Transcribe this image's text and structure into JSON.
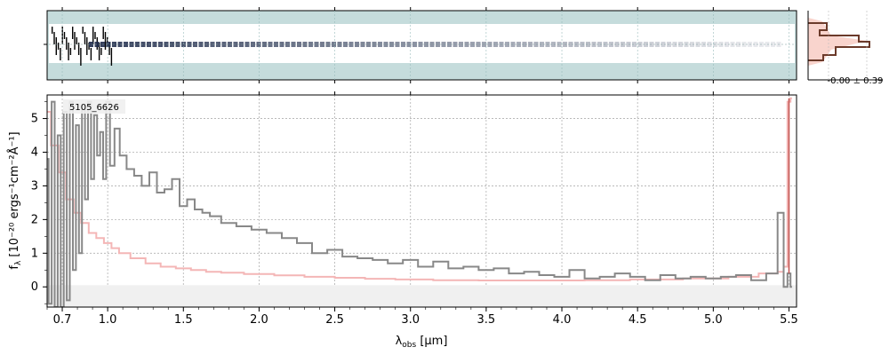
{
  "chart_data": {
    "type": "line",
    "object_id": "5105_6626",
    "xlabel_prefix": "λ",
    "xlabel_sub": "obs",
    "xlabel_unit": "[μm]",
    "ylabel_text": "f",
    "ylabel_sub": "λ",
    "ylabel_unit": "[10⁻²⁰ ergs⁻¹cm⁻²Å⁻¹]",
    "xlim": [
      0.6,
      5.55
    ],
    "ylim": [
      -0.6,
      5.7
    ],
    "x_ticks": [
      "0.7",
      "1.0",
      "1.5",
      "2.0",
      "2.5",
      "3.0",
      "3.5",
      "4.0",
      "4.5",
      "5.0",
      "5.5"
    ],
    "y_ticks": [
      "0",
      "1",
      "2",
      "3",
      "4",
      "5"
    ],
    "grid": true,
    "hist_label": "-0.00 ± 0.39",
    "colors": {
      "data": "#888888",
      "model": "#f4b6b6",
      "model_edge": "#c0504d",
      "spec2d_bg": "#c5dcdc",
      "hist_line": "#6b3a2a",
      "hist_fill": "#f8c9c0",
      "zero_band": "#f0f0f0"
    },
    "series": [
      {
        "role": "data",
        "x": [
          0.6,
          0.62,
          0.64,
          0.66,
          0.68,
          0.7,
          0.72,
          0.74,
          0.76,
          0.78,
          0.8,
          0.82,
          0.84,
          0.86,
          0.88,
          0.9,
          0.92,
          0.94,
          0.96,
          0.98,
          1.0,
          1.03,
          1.06,
          1.1,
          1.15,
          1.2,
          1.25,
          1.3,
          1.35,
          1.4,
          1.45,
          1.5,
          1.55,
          1.6,
          1.65,
          1.7,
          1.8,
          1.9,
          2.0,
          2.1,
          2.2,
          2.3,
          2.4,
          2.5,
          2.6,
          2.7,
          2.8,
          2.9,
          3.0,
          3.1,
          3.2,
          3.3,
          3.4,
          3.5,
          3.6,
          3.7,
          3.8,
          3.9,
          4.0,
          4.1,
          4.2,
          4.3,
          4.4,
          4.5,
          4.6,
          4.7,
          4.8,
          4.9,
          5.0,
          5.1,
          5.2,
          5.3,
          5.4,
          5.45,
          5.48,
          5.5,
          5.52
        ],
        "y": [
          3.8,
          -0.5,
          5.5,
          -0.6,
          4.5,
          -0.6,
          5.2,
          -0.4,
          5.5,
          0.5,
          4.8,
          1.0,
          5.4,
          2.6,
          5.5,
          3.2,
          5.1,
          3.9,
          4.6,
          3.2,
          5.5,
          3.6,
          4.7,
          3.9,
          3.5,
          3.3,
          3.0,
          3.4,
          2.8,
          2.9,
          3.2,
          2.4,
          2.6,
          2.3,
          2.2,
          2.1,
          1.9,
          1.8,
          1.7,
          1.6,
          1.45,
          1.3,
          1.0,
          1.1,
          0.9,
          0.85,
          0.8,
          0.7,
          0.8,
          0.6,
          0.75,
          0.55,
          0.6,
          0.5,
          0.55,
          0.4,
          0.45,
          0.35,
          0.3,
          0.5,
          0.25,
          0.3,
          0.4,
          0.3,
          0.2,
          0.35,
          0.25,
          0.3,
          0.25,
          0.3,
          0.35,
          0.2,
          0.4,
          2.2,
          0.0,
          0.4,
          0.0
        ]
      },
      {
        "role": "model",
        "x": [
          0.6,
          0.65,
          0.7,
          0.75,
          0.8,
          0.85,
          0.9,
          0.95,
          1.0,
          1.05,
          1.1,
          1.2,
          1.3,
          1.4,
          1.5,
          1.6,
          1.7,
          1.8,
          2.0,
          2.2,
          2.4,
          2.6,
          2.8,
          3.0,
          3.3,
          3.6,
          4.0,
          4.3,
          4.6,
          5.0,
          5.2,
          5.4,
          5.45,
          5.48,
          5.5,
          5.52
        ],
        "y": [
          5.2,
          4.2,
          3.4,
          2.6,
          2.2,
          1.9,
          1.6,
          1.45,
          1.3,
          1.15,
          1.0,
          0.85,
          0.7,
          0.6,
          0.55,
          0.5,
          0.45,
          0.42,
          0.38,
          0.34,
          0.3,
          0.27,
          0.24,
          0.22,
          0.2,
          0.19,
          0.19,
          0.2,
          0.22,
          0.25,
          0.3,
          0.4,
          0.45,
          0.6,
          5.5,
          5.6
        ]
      }
    ]
  }
}
